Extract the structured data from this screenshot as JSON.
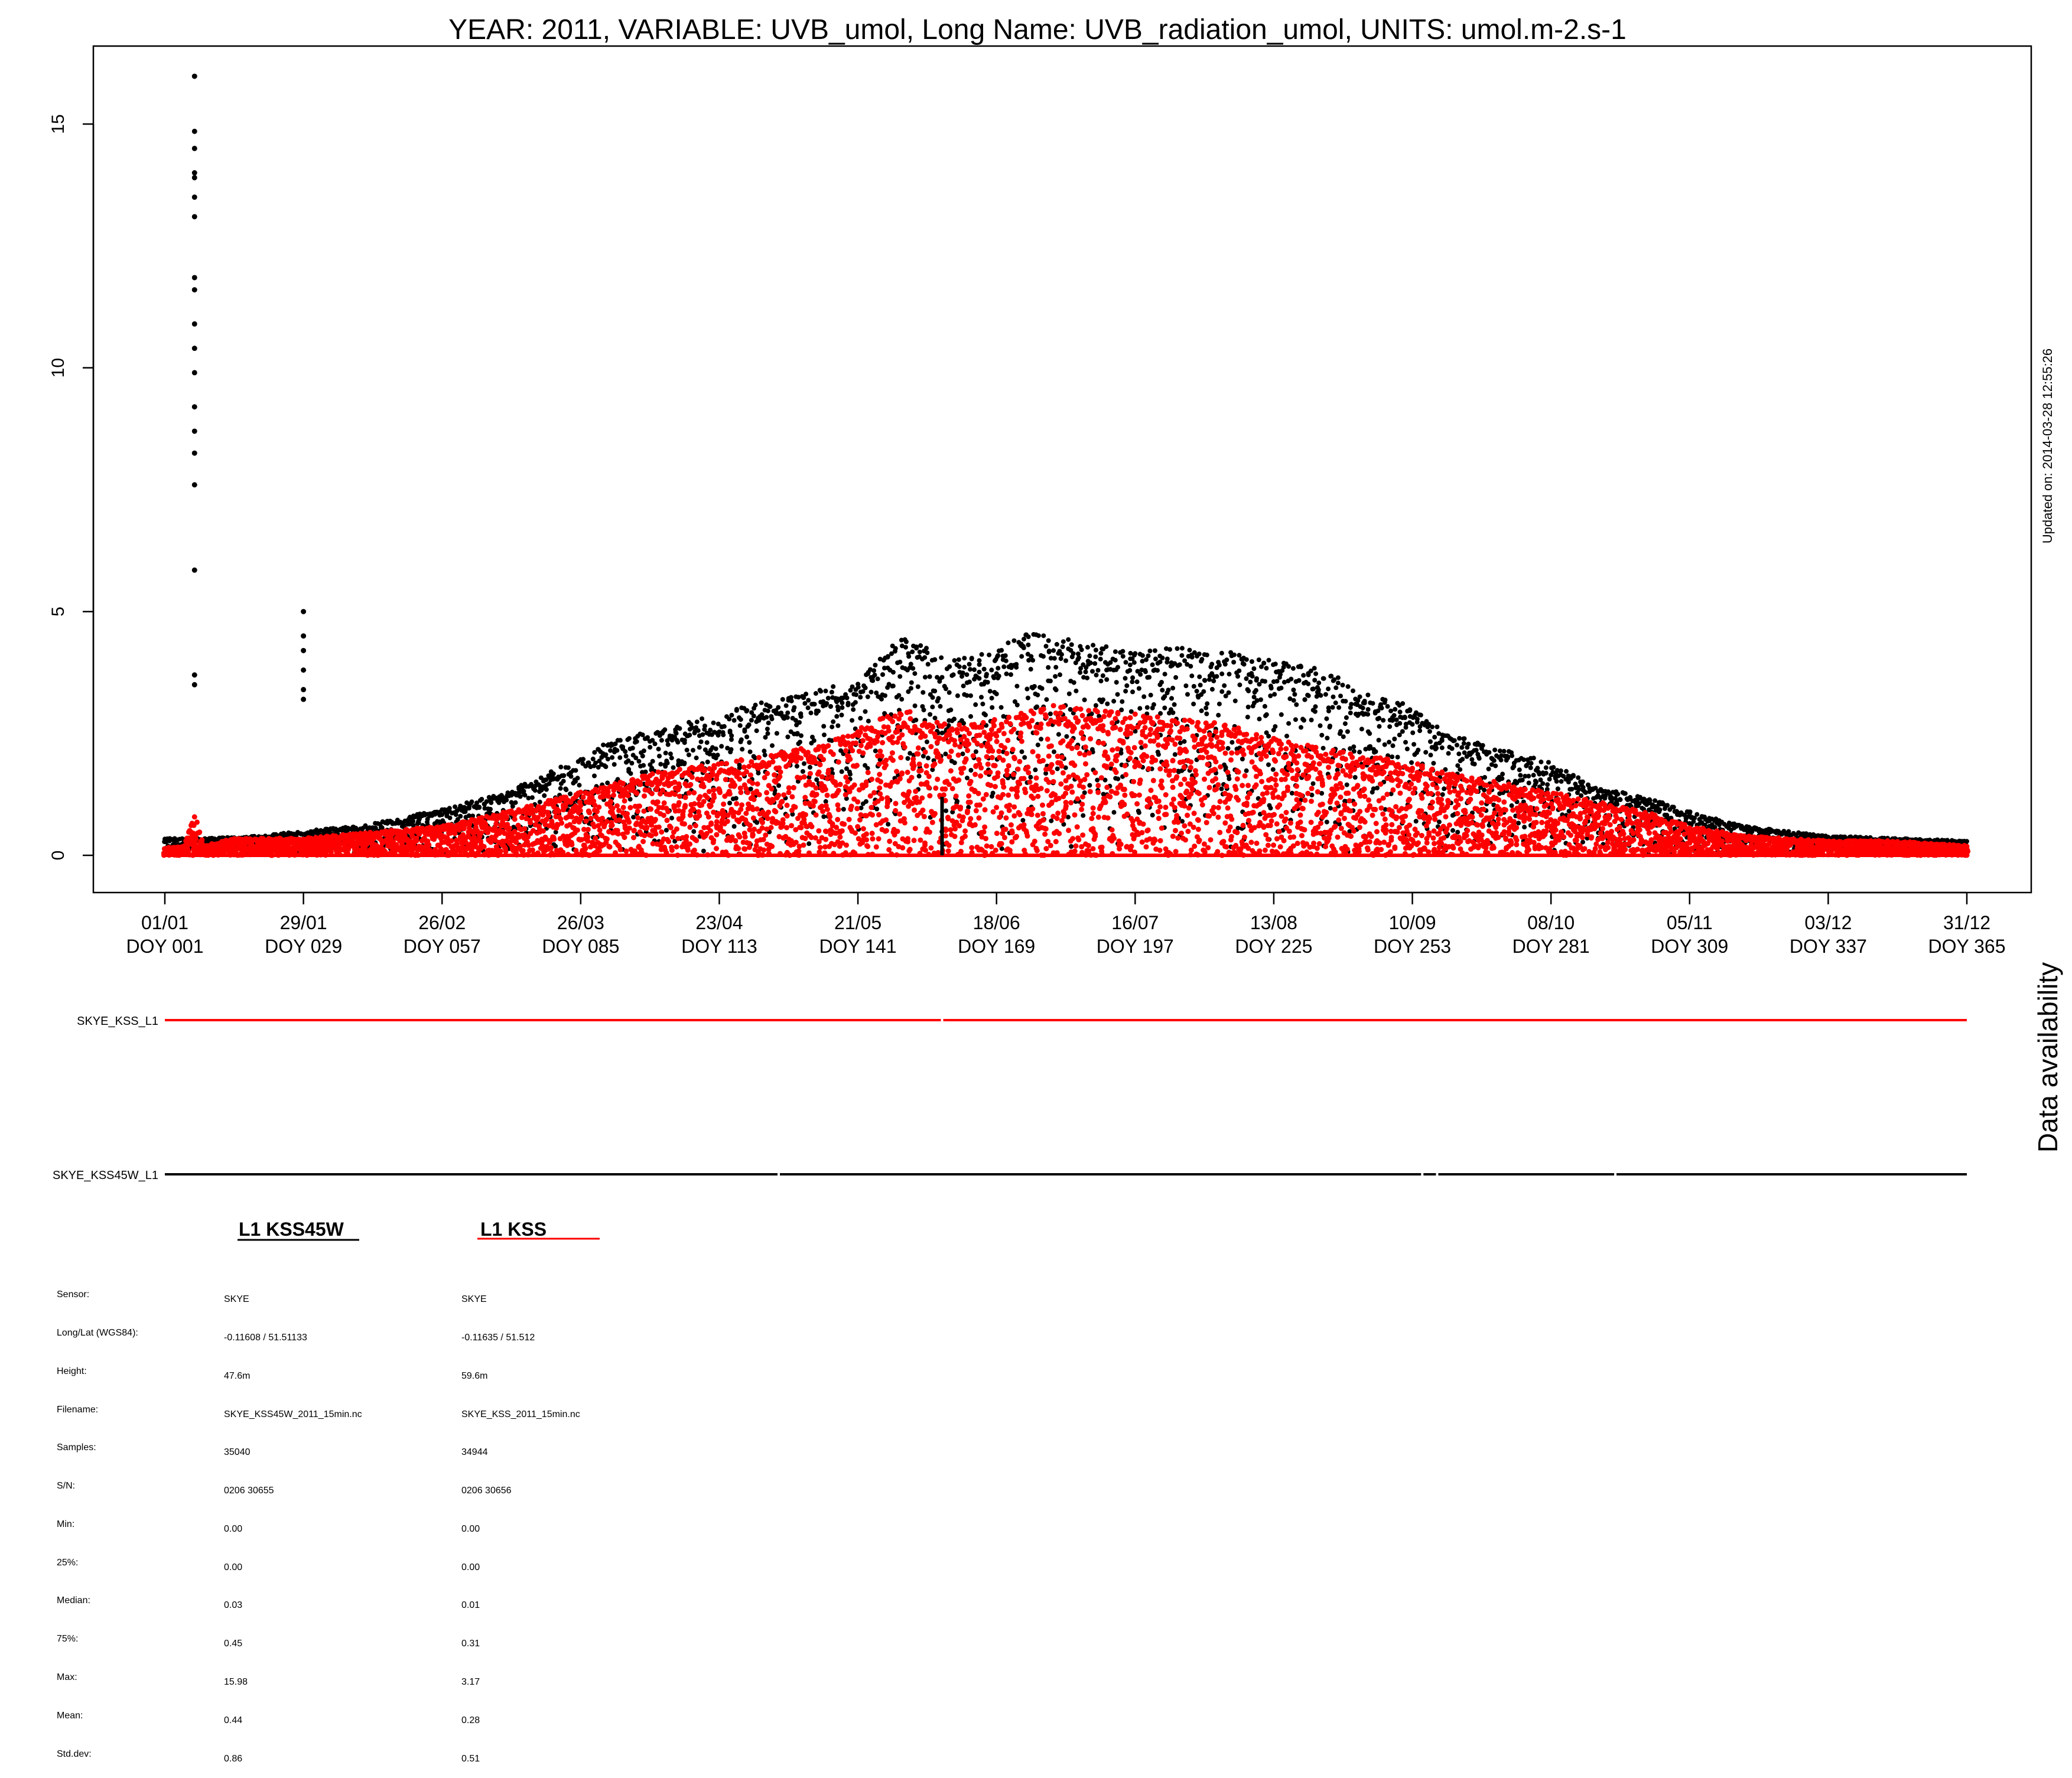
{
  "colors": {
    "kss45w": "#000000",
    "kss": "#ff0000",
    "frame": "#000000"
  },
  "page": {
    "updated": "Updated on: 2014-03-28 12:55:26"
  },
  "chart_data": {
    "type": "scatter",
    "title": "YEAR: 2011, VARIABLE: UVB_umol, Long Name: UVB_radiation_umol, UNITS: umol.m-2.s-1",
    "xlabel": "",
    "ylabel": "",
    "xlim": [
      1,
      365
    ],
    "ylim": [
      -0.7,
      16.6
    ],
    "yticks": [
      0,
      5,
      10,
      15
    ],
    "xticks": [
      {
        "doy": 1,
        "date": "01/01",
        "label": "DOY 001"
      },
      {
        "doy": 29,
        "date": "29/01",
        "label": "DOY 029"
      },
      {
        "doy": 57,
        "date": "26/02",
        "label": "DOY 057"
      },
      {
        "doy": 85,
        "date": "26/03",
        "label": "DOY 085"
      },
      {
        "doy": 113,
        "date": "23/04",
        "label": "DOY 113"
      },
      {
        "doy": 141,
        "date": "21/05",
        "label": "DOY 141"
      },
      {
        "doy": 169,
        "date": "18/06",
        "label": "DOY 169"
      },
      {
        "doy": 197,
        "date": "16/07",
        "label": "DOY 197"
      },
      {
        "doy": 225,
        "date": "13/08",
        "label": "DOY 225"
      },
      {
        "doy": 253,
        "date": "10/09",
        "label": "DOY 253"
      },
      {
        "doy": 281,
        "date": "08/10",
        "label": "DOY 281"
      },
      {
        "doy": 309,
        "date": "05/11",
        "label": "DOY 309"
      },
      {
        "doy": 337,
        "date": "03/12",
        "label": "DOY 337"
      },
      {
        "doy": 365,
        "date": "31/12",
        "label": "DOY 365"
      }
    ],
    "grid": false,
    "series": [
      {
        "name": "SKYE_KSS45W_L1",
        "color": "#000000",
        "daily_max_envelope": {
          "doy": [
            1,
            10,
            20,
            29,
            40,
            50,
            57,
            70,
            85,
            90,
            100,
            113,
            120,
            130,
            141,
            150,
            160,
            169,
            175,
            180,
            190,
            197,
            205,
            215,
            225,
            235,
            245,
            253,
            260,
            270,
            281,
            290,
            300,
            309,
            320,
            337,
            350,
            365
          ],
          "uvb": [
            0.35,
            0.35,
            0.4,
            0.5,
            0.6,
            0.8,
            0.95,
            1.3,
            2.0,
            2.3,
            2.6,
            2.9,
            3.1,
            3.3,
            3.6,
            4.5,
            4.0,
            4.2,
            4.6,
            4.5,
            4.3,
            4.2,
            4.3,
            4.2,
            4.0,
            3.8,
            3.3,
            3.1,
            2.5,
            2.2,
            1.9,
            1.4,
            1.2,
            0.9,
            0.6,
            0.4,
            0.35,
            0.3
          ]
        },
        "spikes": [
          {
            "doy": 7,
            "values": [
              3.5,
              3.7,
              5.85,
              7.6,
              8.25,
              8.7,
              9.2,
              9.9,
              10.4,
              10.9,
              11.6,
              11.85,
              13.1,
              13.5,
              13.9,
              14.0,
              14.5,
              14.85,
              15.98
            ]
          },
          {
            "doy": 29,
            "values": [
              3.2,
              3.4,
              3.8,
              4.2,
              4.5,
              5.0
            ]
          }
        ],
        "stats": {
          "sensor": "SKYE",
          "longlat": "-0.11608 / 51.51133",
          "height": "47.6m",
          "filename": "SKYE_KSS45W_2011_15min.nc",
          "samples": "35040",
          "sn": "0206 30655",
          "min": "0.00",
          "p25": "0.00",
          "median": "0.03",
          "p75": "0.45",
          "max": "15.98",
          "mean": "0.44",
          "stddev": "0.86"
        }
      },
      {
        "name": "SKYE_KSS_L1",
        "color": "#ff0000",
        "daily_max_envelope": {
          "doy": [
            1,
            5,
            7,
            9,
            15,
            29,
            40,
            57,
            70,
            85,
            100,
            113,
            130,
            141,
            150,
            160,
            169,
            180,
            197,
            215,
            225,
            240,
            253,
            265,
            281,
            300,
            309,
            320,
            337,
            350,
            365
          ],
          "uvb": [
            0.15,
            0.2,
            0.85,
            0.2,
            0.35,
            0.35,
            0.45,
            0.6,
            0.9,
            1.3,
            1.7,
            1.9,
            2.2,
            2.6,
            3.0,
            2.7,
            2.8,
            3.1,
            2.9,
            2.7,
            2.4,
            2.1,
            1.9,
            1.6,
            1.3,
            0.9,
            0.6,
            0.4,
            0.3,
            0.3,
            0.2
          ]
        },
        "stats": {
          "sensor": "SKYE",
          "longlat": "-0.11635 / 51.512",
          "height": "59.6m",
          "filename": "SKYE_KSS_2011_15min.nc",
          "samples": "34944",
          "sn": "0206 30656",
          "min": "0.00",
          "p25": "0.00",
          "median": "0.01",
          "p75": "0.31",
          "max": "3.17",
          "mean": "0.28",
          "stddev": "0.51"
        }
      }
    ],
    "availability": {
      "title": "Data availability",
      "rows": [
        {
          "label": "SKYE_KSS_L1",
          "color": "#ff0000",
          "gaps_doy": [
            158
          ]
        },
        {
          "label": "SKYE_KSS45W_L1",
          "color": "#000000",
          "gaps_doy": [
            125,
            255,
            258,
            294
          ]
        }
      ]
    }
  },
  "legend": {
    "kss45w_label": "L1 KSS45W",
    "kss_label": "L1 KSS"
  },
  "stats_labels": [
    "Sensor:",
    "Long/Lat (WGS84):",
    "Height:",
    "Filename:",
    "Samples:",
    "S/N:",
    "Min:",
    "25%:",
    "Median:",
    "75%:",
    "Max:",
    "Mean:",
    "Std.dev:"
  ]
}
